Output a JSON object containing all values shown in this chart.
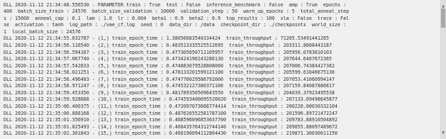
{
  "background_color": "#f0f0f0",
  "text_color": "#2b2b2b",
  "font_size": 4.8,
  "font_family": "monospace",
  "header_lines": [
    "DLL 2020-11-12 21:34:48.556530 - PARAMETER train : True  test : False  inference_benchmark : False  amp : True  epochs :",
    "400  batch_size_train : 24576  batch_size_validation : 10000  validation_step : 50  warm_up_epochs : 5  total_anneal_step",
    "s : 15000  anneal_cap : 0.1  lam : 1.0  lr : 0.004  beta1 : 0.9  beta2 : 0.9  top_results : 100  xla : False  trace : Fal",
    "se  activation : tanh  log_path : ./vae_cf.log  seed : 0  data_dir : /data  checkpoint_dir : ./checkpoints  world_size :",
    "1  local_batch_size : 24576"
  ],
  "epoch_lines": [
    "DLL 2020-11-12 21:34:55.632787 - (1,) train_epoch_time : 1.38056683540334424  train_throughput : 71205.53491441265",
    "DLL 2020-11-12 21:34:56.116540 - (2,) train_epoch_time : 0.483513335525512695  train_throughput : 203311.8608443187",
    "DLL 2020-11-12 21:34:56.594167 - (3,) train_epoch_time : 0.477305650711105957  train_throughput : 205956.0783610103",
    "DLL 2020-11-12 21:34:57.067740 - (4,) train_epoch_time : 0.473424196243286130  train_throughput : 207644.6467672365",
    "DLL 2020-11-12 21:34:57.542833 - (5,) train_epoch_time : 0.474883079528808060  train_throughput : 207006.74384427382",
    "DLL 2020-11-12 21:34:58.021251 - (6,) train_epoch_time : 0.478133201599121100  train_throughput : 205599.61046675136",
    "DLL 2020-11-12 21:34:58.496483 - (7,) train_epoch_time : 0.474776029586792000  train_throughput : 207053.41060994147",
    "DLL 2020-11-12 21:34:58.971247 - (8,) train_epoch_time : 0.474532127380371100  train_throughput : 207159.84087880817",
    "DLL 2020-11-12 21:34:59.453350 - (9,) train_epoch_time : 0.481789350509643550  train_throughput : 204039.37923495538",
    "DLL 2020-11-12 21:34:59.928888 - (10,) train_epoch_time : 0.474593400095520020  train_throughput : 207133.09498645877",
    "DLL 2020-11-12 21:35:00.400375 - (11,) train_epoch_time : 0.472097073688774414  train_throughput : 200220.00030332104",
    "DLL 2020-11-12 21:35:00.888168 - (12,) train_epoch_time : 0.487626552581787100  train_throughput : 201596.89721472247",
    "DLL 2020-11-12 21:35:01.356910 - (13,) train_epoch_time : 0.468596096853637700  train_throughput : 209783.88910504892",
    "DLL 2020-11-12 21:35:01.825493 - (14,) train_epoch_time : 0.468435764312744140  train_throughput : 209855.88097489672",
    "DLL 2020-11-12 21:35:02.301843 - (15,) train_epoch_time : 0.468190094112864430  train_throughput : 219871.30030011150"
  ],
  "scrollbar_bg_color": "#e0e0e0",
  "scrollbar_thumb_color": "#a8a8a8",
  "scrollbar_arrow_color": "#808080",
  "border_color": "#cccccc"
}
